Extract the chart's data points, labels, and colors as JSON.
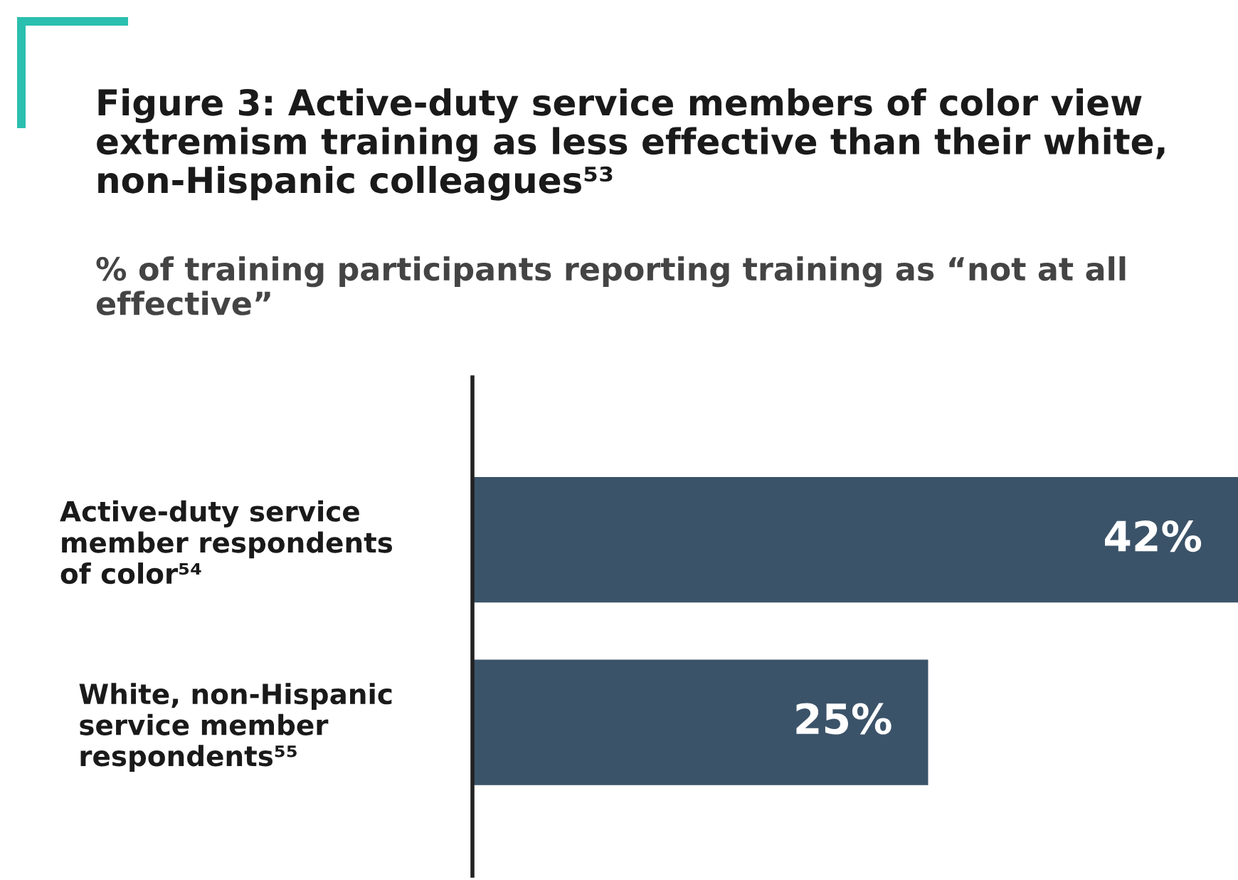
{
  "chart_data": {
    "type": "bar",
    "orientation": "horizontal",
    "title": "Figure 3: Active-duty service members of color view\nextremism training as less effective than their white,\nnon-Hispanic colleagues⁵³",
    "subtitle": "% of training participants reporting training as “not at all\neffective”",
    "categories": [
      "Active-duty service\nmember respondents\nof color⁵⁴",
      "White, non-Hispanic\nservice member\nrespondents⁵⁵"
    ],
    "values": [
      42,
      25
    ],
    "value_labels": [
      "42%",
      "25%"
    ],
    "color": "#3b5369",
    "grid": false,
    "legend": false
  }
}
